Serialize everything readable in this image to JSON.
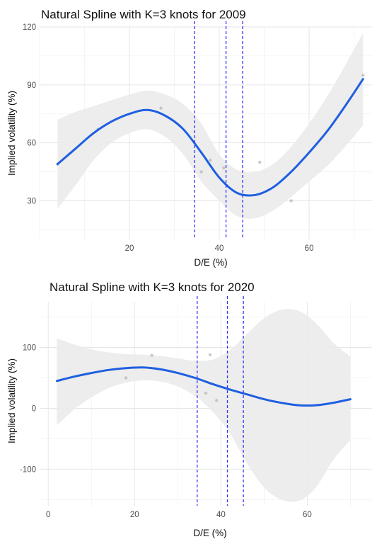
{
  "chart_data": [
    {
      "type": "line",
      "title": "Natural Spline with K=3 knots for 2009",
      "xlabel": "D/E (%)",
      "ylabel": "Implied volatility (%)",
      "xlim": [
        0,
        74
      ],
      "ylim": [
        10,
        120
      ],
      "x_ticks": [
        20,
        40,
        60
      ],
      "y_ticks": [
        30,
        60,
        90,
        120
      ],
      "grid": true,
      "knots": [
        34.5,
        41.5,
        45.2
      ],
      "knot_color": "#3333ff",
      "curve_color": "#1f5fe0",
      "band_color": "#ebebeb",
      "point_color": "#b3b3b3",
      "points": [
        {
          "x": 4,
          "y": 49
        },
        {
          "x": 13,
          "y": 67
        },
        {
          "x": 27,
          "y": 78
        },
        {
          "x": 36,
          "y": 45
        },
        {
          "x": 38,
          "y": 51
        },
        {
          "x": 41,
          "y": 47
        },
        {
          "x": 49,
          "y": 50
        },
        {
          "x": 56,
          "y": 30
        },
        {
          "x": 72,
          "y": 95
        }
      ],
      "fit": [
        {
          "x": 4,
          "y": 49
        },
        {
          "x": 8,
          "y": 57
        },
        {
          "x": 12,
          "y": 65
        },
        {
          "x": 16,
          "y": 71
        },
        {
          "x": 20,
          "y": 75
        },
        {
          "x": 24,
          "y": 77
        },
        {
          "x": 28,
          "y": 74
        },
        {
          "x": 32,
          "y": 67
        },
        {
          "x": 36,
          "y": 55
        },
        {
          "x": 40,
          "y": 42
        },
        {
          "x": 44,
          "y": 34
        },
        {
          "x": 48,
          "y": 33
        },
        {
          "x": 52,
          "y": 37
        },
        {
          "x": 56,
          "y": 45
        },
        {
          "x": 60,
          "y": 55
        },
        {
          "x": 64,
          "y": 66
        },
        {
          "x": 68,
          "y": 79
        },
        {
          "x": 72,
          "y": 93
        }
      ],
      "band_lower": [
        {
          "x": 4,
          "y": 26
        },
        {
          "x": 8,
          "y": 38
        },
        {
          "x": 12,
          "y": 51
        },
        {
          "x": 16,
          "y": 60
        },
        {
          "x": 20,
          "y": 65
        },
        {
          "x": 24,
          "y": 67
        },
        {
          "x": 28,
          "y": 63
        },
        {
          "x": 32,
          "y": 54
        },
        {
          "x": 36,
          "y": 40
        },
        {
          "x": 40,
          "y": 30
        },
        {
          "x": 44,
          "y": 22
        },
        {
          "x": 48,
          "y": 21
        },
        {
          "x": 52,
          "y": 25
        },
        {
          "x": 56,
          "y": 32
        },
        {
          "x": 60,
          "y": 40
        },
        {
          "x": 64,
          "y": 48
        },
        {
          "x": 68,
          "y": 58
        },
        {
          "x": 72,
          "y": 69
        }
      ],
      "band_upper": [
        {
          "x": 4,
          "y": 72
        },
        {
          "x": 8,
          "y": 76
        },
        {
          "x": 12,
          "y": 79
        },
        {
          "x": 16,
          "y": 82
        },
        {
          "x": 20,
          "y": 85
        },
        {
          "x": 24,
          "y": 87
        },
        {
          "x": 28,
          "y": 85
        },
        {
          "x": 32,
          "y": 80
        },
        {
          "x": 36,
          "y": 70
        },
        {
          "x": 40,
          "y": 54
        },
        {
          "x": 44,
          "y": 46
        },
        {
          "x": 48,
          "y": 45
        },
        {
          "x": 52,
          "y": 49
        },
        {
          "x": 56,
          "y": 58
        },
        {
          "x": 60,
          "y": 70
        },
        {
          "x": 64,
          "y": 84
        },
        {
          "x": 68,
          "y": 100
        },
        {
          "x": 72,
          "y": 117
        }
      ]
    },
    {
      "type": "line",
      "title": "Natural Spline with K=3 knots for 2020",
      "xlabel": "D/E (%)",
      "ylabel": "Implied volatility (%)",
      "xlim": [
        -2,
        75
      ],
      "ylim": [
        -160,
        175
      ],
      "x_ticks": [
        0,
        20,
        40,
        60
      ],
      "y_ticks": [
        -100,
        0,
        100
      ],
      "grid": true,
      "knots": [
        34.5,
        41.5,
        45.2
      ],
      "knot_color": "#3333ff",
      "curve_color": "#1f5fe0",
      "band_color": "#ebebeb",
      "point_color": "#b3b3b3",
      "points": [
        {
          "x": 18,
          "y": 50
        },
        {
          "x": 24,
          "y": 87
        },
        {
          "x": 25,
          "y": 65
        },
        {
          "x": 36.5,
          "y": 25
        },
        {
          "x": 37.5,
          "y": 88
        },
        {
          "x": 39,
          "y": 13
        }
      ],
      "fit": [
        {
          "x": 2,
          "y": 45
        },
        {
          "x": 6,
          "y": 52
        },
        {
          "x": 10,
          "y": 58
        },
        {
          "x": 14,
          "y": 63
        },
        {
          "x": 18,
          "y": 66
        },
        {
          "x": 22,
          "y": 67
        },
        {
          "x": 26,
          "y": 64
        },
        {
          "x": 30,
          "y": 58
        },
        {
          "x": 34,
          "y": 50
        },
        {
          "x": 38,
          "y": 40
        },
        {
          "x": 42,
          "y": 31
        },
        {
          "x": 46,
          "y": 23
        },
        {
          "x": 50,
          "y": 15
        },
        {
          "x": 54,
          "y": 9
        },
        {
          "x": 58,
          "y": 5
        },
        {
          "x": 62,
          "y": 5
        },
        {
          "x": 66,
          "y": 9
        },
        {
          "x": 70,
          "y": 15
        }
      ],
      "band_lower": [
        {
          "x": 2,
          "y": -28
        },
        {
          "x": 6,
          "y": -2
        },
        {
          "x": 10,
          "y": 18
        },
        {
          "x": 14,
          "y": 33
        },
        {
          "x": 18,
          "y": 42
        },
        {
          "x": 22,
          "y": 46
        },
        {
          "x": 26,
          "y": 44
        },
        {
          "x": 30,
          "y": 36
        },
        {
          "x": 34,
          "y": 20
        },
        {
          "x": 38,
          "y": -5
        },
        {
          "x": 42,
          "y": -40
        },
        {
          "x": 46,
          "y": -90
        },
        {
          "x": 50,
          "y": -130
        },
        {
          "x": 54,
          "y": -150
        },
        {
          "x": 58,
          "y": -152
        },
        {
          "x": 62,
          "y": -130
        },
        {
          "x": 66,
          "y": -85
        },
        {
          "x": 70,
          "y": -52
        }
      ],
      "band_upper": [
        {
          "x": 2,
          "y": 115
        },
        {
          "x": 6,
          "y": 105
        },
        {
          "x": 10,
          "y": 97
        },
        {
          "x": 14,
          "y": 92
        },
        {
          "x": 18,
          "y": 89
        },
        {
          "x": 22,
          "y": 88
        },
        {
          "x": 26,
          "y": 86
        },
        {
          "x": 30,
          "y": 82
        },
        {
          "x": 34,
          "y": 78
        },
        {
          "x": 38,
          "y": 80
        },
        {
          "x": 42,
          "y": 95
        },
        {
          "x": 46,
          "y": 122
        },
        {
          "x": 50,
          "y": 148
        },
        {
          "x": 54,
          "y": 162
        },
        {
          "x": 58,
          "y": 160
        },
        {
          "x": 62,
          "y": 140
        },
        {
          "x": 66,
          "y": 108
        },
        {
          "x": 70,
          "y": 85
        }
      ]
    }
  ]
}
